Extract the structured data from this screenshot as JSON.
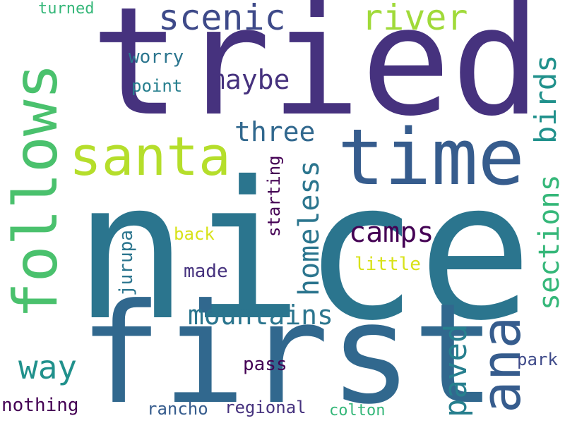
{
  "words": {
    "nice": "nice",
    "tried": "tried",
    "first": "first",
    "follows": "follows",
    "santa": "santa",
    "time": "time",
    "ana": "ana",
    "scenic": "scenic",
    "river": "river",
    "birds": "birds",
    "sections": "sections",
    "homeless": "homeless",
    "mountains": "mountains",
    "paved": "paved",
    "camps": "camps",
    "way": "way",
    "three": "three",
    "maybe": "maybe",
    "worry": "worry",
    "point": "point",
    "turned": "turned",
    "starting": "starting",
    "back": "back",
    "jurupa": "jurupa",
    "made": "made",
    "little": "little",
    "pass": "pass",
    "park": "park",
    "nothing": "nothing",
    "rancho": "rancho",
    "regional": "regional",
    "colton": "colton"
  },
  "colors": {
    "dark_purple": "#46327e",
    "deep_purple": "#440154",
    "indigo": "#3e4a89",
    "slate_blue": "#365c8d",
    "steel_blue": "#31688e",
    "teal_blue": "#2b758e",
    "teal": "#277f8e",
    "teal_green": "#21918c",
    "sea_green": "#1fa187",
    "green": "#35b779",
    "light_green": "#4ac16d",
    "yellow_green": "#a0da39",
    "lime": "#b5de2b",
    "yellow": "#d8e219"
  }
}
